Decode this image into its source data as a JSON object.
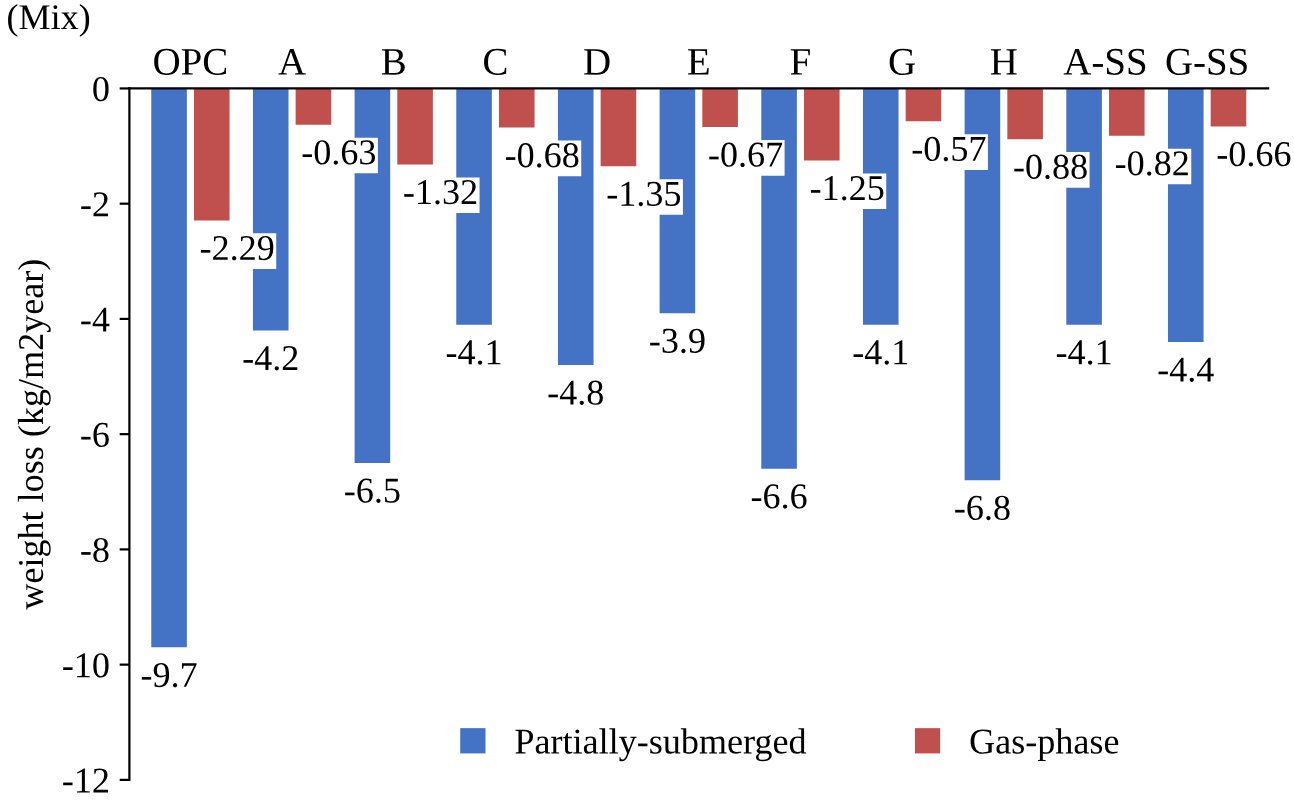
{
  "chart_data": {
    "type": "bar",
    "xlabel": "(Mix)",
    "ylabel": "weight loss (kg/m2year)",
    "categories": [
      "OPC",
      "A",
      "B",
      "C",
      "D",
      "E",
      "F",
      "G",
      "H",
      "A-SS",
      "G-SS"
    ],
    "series": [
      {
        "name": "Partially-submerged",
        "color": "#4472c4",
        "values": [
          -9.7,
          -4.2,
          -6.5,
          -4.1,
          -4.8,
          -3.9,
          -6.6,
          -4.1,
          -6.8,
          -4.1,
          -4.4
        ]
      },
      {
        "name": "Gas-phase",
        "color": "#c0504d",
        "values": [
          -2.29,
          -0.63,
          -1.32,
          -0.68,
          -1.35,
          -0.67,
          -1.25,
          -0.57,
          -0.88,
          -0.82,
          -0.66
        ]
      }
    ],
    "ylim": [
      -12,
      0
    ],
    "yticks": [
      0,
      -2,
      -4,
      -6,
      -8,
      -10,
      -12
    ],
    "data_labels": true,
    "legend": "bottom",
    "grid": false
  }
}
